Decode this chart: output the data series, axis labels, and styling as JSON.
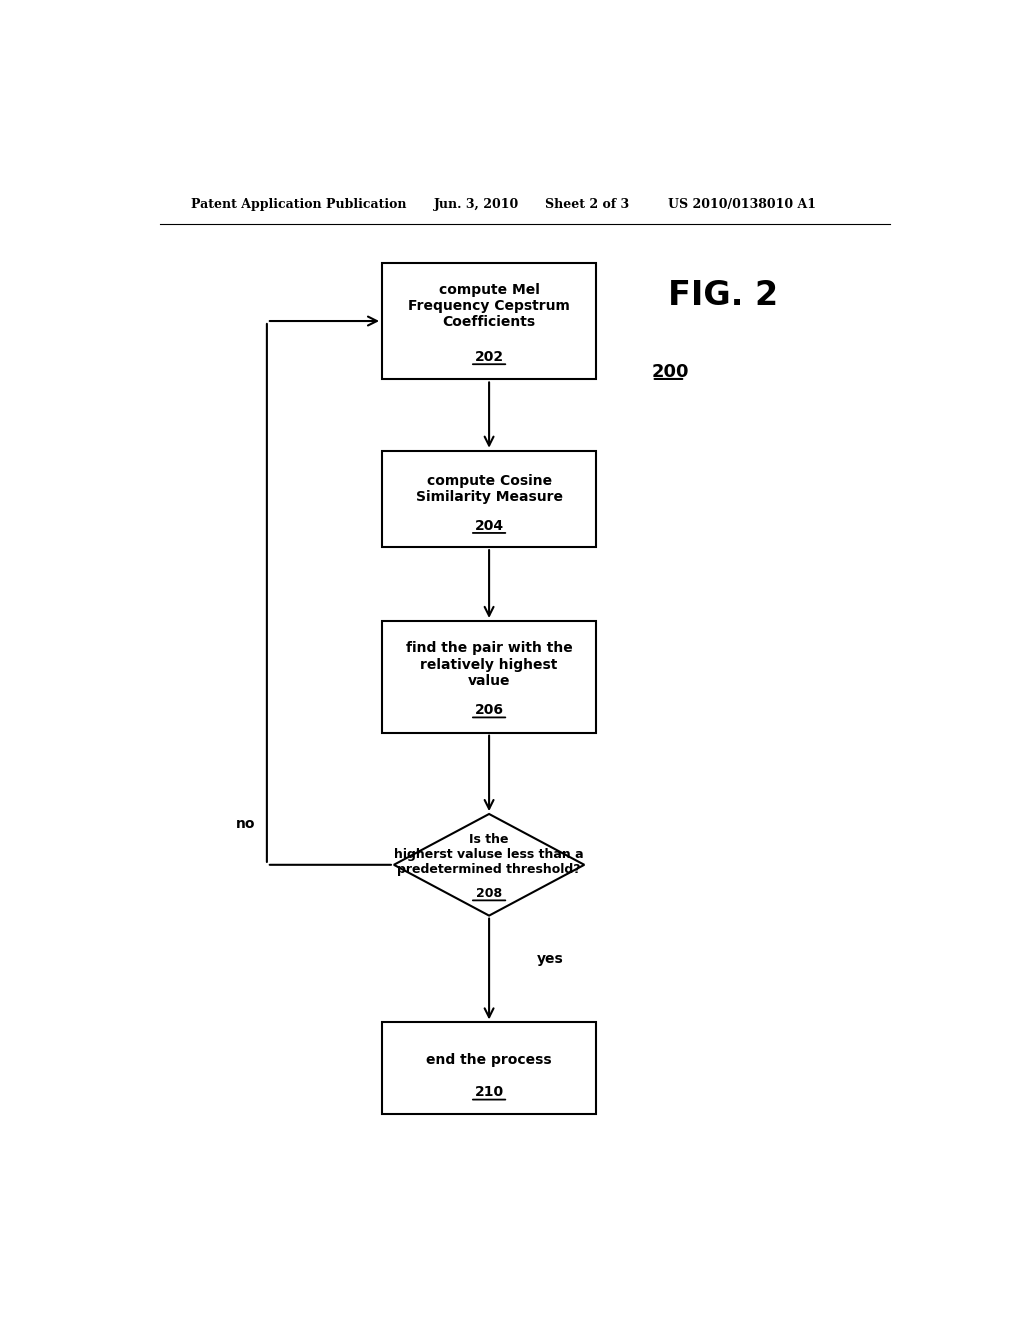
{
  "background_color": "#ffffff",
  "header_text": "Patent Application Publication",
  "header_date": "Jun. 3, 2010",
  "header_sheet": "Sheet 2 of 3",
  "header_patent": "US 2010/0138010 A1",
  "fig_label": "FIG. 2",
  "fig_number_label": "200",
  "box_202_text": "compute Mel\nFrequency Cepstrum\nCoefficients",
  "box_202_num": "202",
  "box_204_text": "compute Cosine\nSimilarity Measure",
  "box_204_num": "204",
  "box_206_text": "find the pair with the\nrelatively highest\nvalue",
  "box_206_num": "206",
  "box_208_text": "Is the\nhigherst valuse less than a\npredetermined threshold?",
  "box_208_num": "208",
  "box_210_text": "end the process",
  "box_210_num": "210",
  "label_yes": "yes",
  "label_no": "no"
}
